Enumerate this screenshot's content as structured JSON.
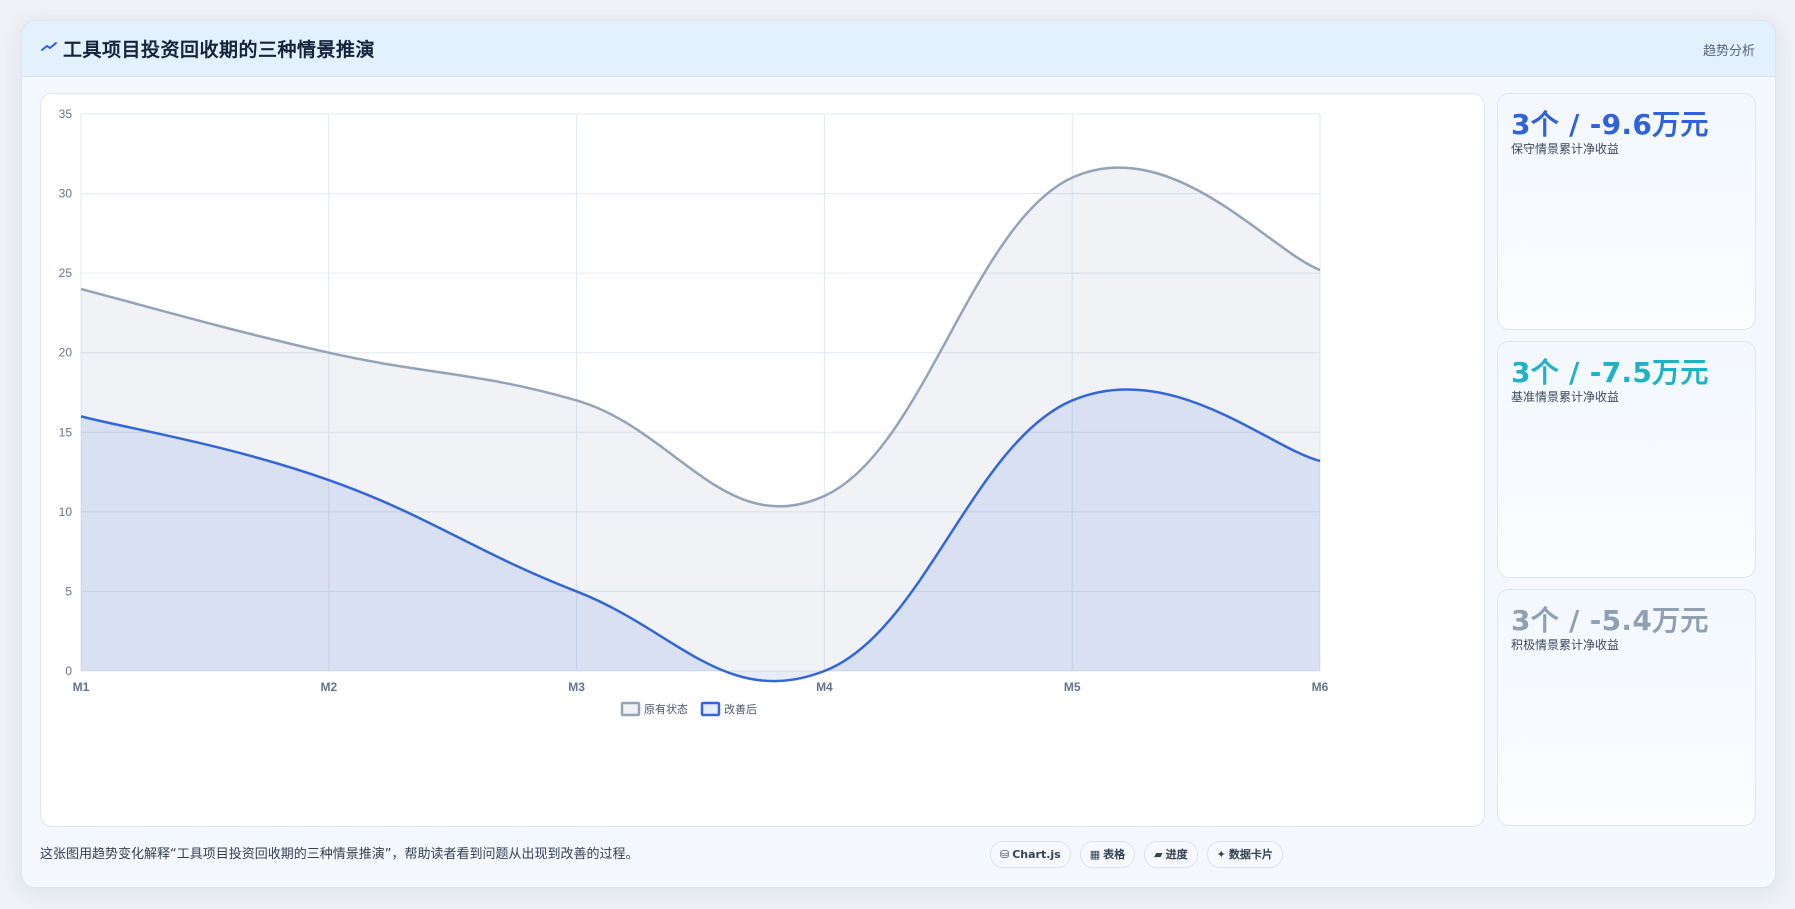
{
  "header": {
    "title_icon": "trend-line-icon",
    "title": "工具项目投资回收期的三种情景推演",
    "badge": "趋势分析"
  },
  "chart_data": {
    "type": "area",
    "categories": [
      "M1",
      "M2",
      "M3",
      "M4",
      "M5",
      "M6"
    ],
    "ylim": [
      0,
      35
    ],
    "yticks": [
      0,
      5,
      10,
      15,
      20,
      25,
      30,
      35
    ],
    "grid": true,
    "legend_position": "bottom",
    "series": [
      {
        "name": "原有状态",
        "values": [
          24,
          20,
          17,
          11,
          31,
          25.2
        ],
        "color": "#94a3b8",
        "fill": "rgba(148,163,184,0.14)"
      },
      {
        "name": "改善后",
        "values": [
          16,
          12,
          5,
          0,
          17,
          13.2
        ],
        "color": "#3366d6",
        "fill": "rgba(51,102,214,0.12)"
      }
    ]
  },
  "stats": [
    {
      "value": "3个 / -9.6万元",
      "label": "保守情景累计净收益",
      "color": "#2f62d8"
    },
    {
      "value": "3个 / -7.5万元",
      "label": "基准情景累计净收益",
      "color": "#1fb1c6"
    },
    {
      "value": "3个 / -5.4万元",
      "label": "积极情景累计净收益",
      "color": "#8f9fb4"
    }
  ],
  "footer": {
    "caption": "这张图用趋势变化解释“工具项目投资回收期的三种情景推演”，帮助读者看到问题从出现到改善的过程。",
    "chips": [
      {
        "icon": "⛁",
        "icon_name": "database-icon",
        "label": "Chart.js"
      },
      {
        "icon": "▦",
        "icon_name": "table-icon",
        "label": "表格"
      },
      {
        "icon": "▰",
        "icon_name": "progress-icon",
        "label": "进度"
      },
      {
        "icon": "✦",
        "icon_name": "sparkle-icon",
        "label": "数据卡片"
      }
    ]
  }
}
